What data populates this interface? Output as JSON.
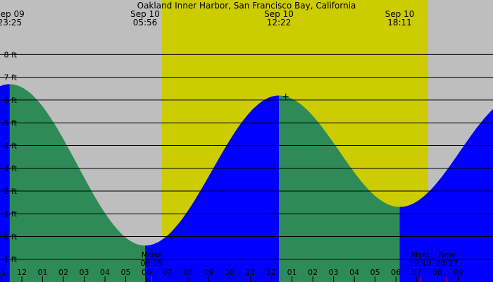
{
  "colors": {
    "night": "#bebebe",
    "day": "#cccc00",
    "falling": "#2e8b57",
    "rising": "#0000ff",
    "grid": "#000000",
    "text": "#000000",
    "moon_tick": "#ff0000"
  },
  "chart_data": {
    "type": "area",
    "title": "Oakland Inner Harbor, San Francisco Bay, California",
    "xlabel": "",
    "ylabel": "",
    "x_unit": "hour",
    "x_range": [
      -1.05,
      22.67
    ],
    "ylim": [
      -2.0,
      10.4
    ],
    "y_ticks": [
      {
        "value": 8,
        "label": "8 ft"
      },
      {
        "value": 7,
        "label": "7 ft"
      },
      {
        "value": 6,
        "label": "6 ft"
      },
      {
        "value": 5,
        "label": "5 ft"
      },
      {
        "value": 4,
        "label": "4 ft"
      },
      {
        "value": 3,
        "label": "3 ft"
      },
      {
        "value": 2,
        "label": "2 ft"
      },
      {
        "value": 1,
        "label": "1 ft"
      },
      {
        "value": 0,
        "label": "0 ft"
      },
      {
        "value": -1,
        "label": "-1 ft"
      }
    ],
    "x_ticks": [
      {
        "value": -1,
        "label": "11"
      },
      {
        "value": 0,
        "label": "12"
      },
      {
        "value": 1,
        "label": "01"
      },
      {
        "value": 2,
        "label": "02"
      },
      {
        "value": 3,
        "label": "03"
      },
      {
        "value": 4,
        "label": "04"
      },
      {
        "value": 5,
        "label": "05"
      },
      {
        "value": 6,
        "label": "06"
      },
      {
        "value": 7,
        "label": "07"
      },
      {
        "value": 8,
        "label": "08"
      },
      {
        "value": 9,
        "label": "09"
      },
      {
        "value": 10,
        "label": "10"
      },
      {
        "value": 11,
        "label": "11"
      },
      {
        "value": 12,
        "label": "12"
      },
      {
        "value": 13,
        "label": "01"
      },
      {
        "value": 14,
        "label": "02"
      },
      {
        "value": 15,
        "label": "03"
      },
      {
        "value": 16,
        "label": "04"
      },
      {
        "value": 17,
        "label": "05"
      },
      {
        "value": 18,
        "label": "06"
      },
      {
        "value": 19,
        "label": "07"
      },
      {
        "value": 20,
        "label": "08"
      },
      {
        "value": 21,
        "label": "09"
      }
    ],
    "daylight": {
      "start": 6.73,
      "end": 19.55
    },
    "tide_extremes": [
      {
        "date": "Sep 09",
        "time": "23:25",
        "hour": -0.58,
        "height": 6.7,
        "kind": "high"
      },
      {
        "date": "Sep 10",
        "time": "05:56",
        "hour": 5.93,
        "height": -0.4,
        "kind": "low"
      },
      {
        "date": "Sep 10",
        "time": "12:22",
        "hour": 12.37,
        "height": 6.2,
        "kind": "high"
      },
      {
        "date": "Sep 10",
        "time": "18:11",
        "hour": 18.18,
        "height": 1.3,
        "kind": "low"
      }
    ],
    "curve_end": {
      "hour": 22.67,
      "height": 4.3
    },
    "current_time_hour": 12.7,
    "moon_events": [
      {
        "name": "Mrise",
        "time": "06:15",
        "hour": 6.25
      },
      {
        "name": "Mset",
        "time": "19:10",
        "hour": 19.17
      },
      {
        "name": "New",
        "time": "20:27",
        "hour": 20.45
      }
    ]
  }
}
